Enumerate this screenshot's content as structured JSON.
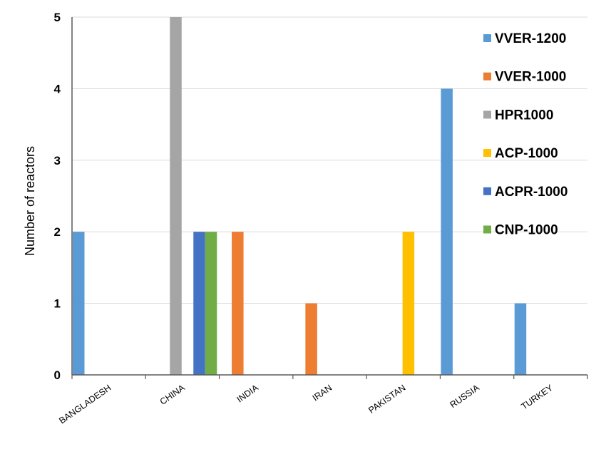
{
  "chart_data": {
    "type": "bar",
    "title": "",
    "xlabel": "",
    "ylabel": "Number of reactors",
    "ylim": [
      0,
      5
    ],
    "yticks": [
      "0",
      "1",
      "2",
      "3",
      "4",
      "5"
    ],
    "grid": "horizontal",
    "legend_position": "top-right",
    "categories": [
      "BANGLADESH",
      "CHINA",
      "INDIA",
      "IRAN",
      "PAKISTAN",
      "RUSSIA",
      "TURKEY"
    ],
    "series": [
      {
        "name": "VVER-1200",
        "color": "#5B9BD5",
        "values": [
          2,
          0,
          0,
          0,
          0,
          4,
          1
        ]
      },
      {
        "name": "VVER-1000",
        "color": "#ED7D31",
        "values": [
          0,
          0,
          2,
          1,
          0,
          0,
          0
        ]
      },
      {
        "name": "HPR1000",
        "color": "#A5A5A5",
        "values": [
          0,
          5,
          0,
          0,
          0,
          0,
          0
        ]
      },
      {
        "name": "ACP-1000",
        "color": "#FFC000",
        "values": [
          0,
          0,
          0,
          0,
          2,
          0,
          0
        ]
      },
      {
        "name": "ACPR-1000",
        "color": "#4472C4",
        "values": [
          0,
          2,
          0,
          0,
          0,
          0,
          0
        ]
      },
      {
        "name": "CNP-1000",
        "color": "#70AD47",
        "values": [
          0,
          2,
          0,
          0,
          0,
          0,
          0
        ]
      }
    ]
  }
}
